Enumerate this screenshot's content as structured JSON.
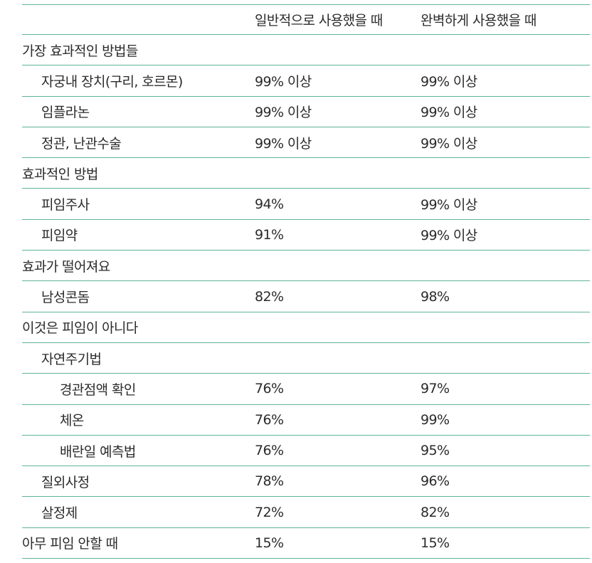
{
  "header": {
    "col_typical": "일반적으로 사용했을 때",
    "col_perfect": "완벽하게 사용했을 때"
  },
  "rows": [
    {
      "label": "가장 효과적인 방법들",
      "level": 0,
      "typical": "",
      "perfect": ""
    },
    {
      "label": "자궁내 장치(구리, 호르몬)",
      "level": 1,
      "typical": "99% 이상",
      "perfect": "99% 이상"
    },
    {
      "label": "임플라논",
      "level": 1,
      "typical": "99% 이상",
      "perfect": "99% 이상"
    },
    {
      "label": "정관, 난관수술",
      "level": 1,
      "typical": "99% 이상",
      "perfect": "99% 이상"
    },
    {
      "label": "효과적인 방법",
      "level": 0,
      "typical": "",
      "perfect": ""
    },
    {
      "label": "피임주사",
      "level": 1,
      "typical": "94%",
      "perfect": "99% 이상"
    },
    {
      "label": "피임약",
      "level": 1,
      "typical": "91%",
      "perfect": "99% 이상"
    },
    {
      "label": "효과가 떨어져요",
      "level": 0,
      "typical": "",
      "perfect": ""
    },
    {
      "label": "남성콘돔",
      "level": 1,
      "typical": "82%",
      "perfect": "98%"
    },
    {
      "label": "이것은 피임이 아니다",
      "level": 0,
      "typical": "",
      "perfect": ""
    },
    {
      "label": "자연주기법",
      "level": 1,
      "typical": "",
      "perfect": ""
    },
    {
      "label": "경관점액 확인",
      "level": 2,
      "typical": "76%",
      "perfect": "97%"
    },
    {
      "label": "체온",
      "level": 2,
      "typical": "76%",
      "perfect": "99%"
    },
    {
      "label": "배란일 예측법",
      "level": 2,
      "typical": "76%",
      "perfect": "95%"
    },
    {
      "label": "질외사정",
      "level": 1,
      "typical": "78%",
      "perfect": "96%"
    },
    {
      "label": "살정제",
      "level": 1,
      "typical": "72%",
      "perfect": "82%"
    },
    {
      "label": "아무 피임 안할 때",
      "level": 0,
      "typical": "15%",
      "perfect": "15%"
    }
  ],
  "colors": {
    "rule": "#5fb39a",
    "text": "#2b2b2b"
  }
}
